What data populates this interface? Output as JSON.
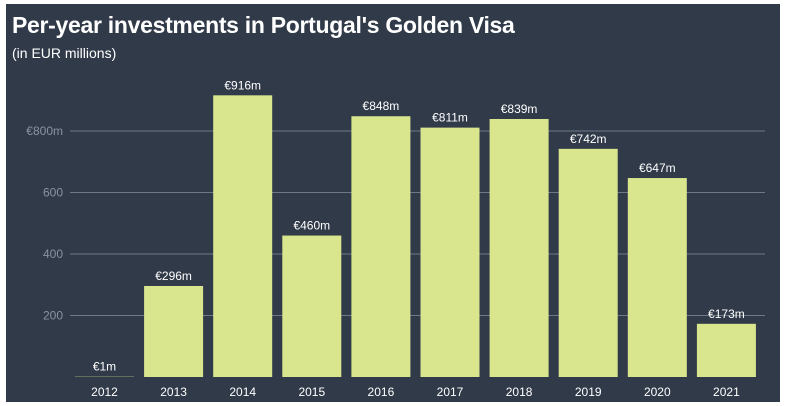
{
  "header": {
    "title": "Per-year investments in Portugal's Golden Visa",
    "subtitle": "(in EUR millions)"
  },
  "colors": {
    "background": "#313a49",
    "bar": "#dae68e",
    "grid": "#6f7885"
  },
  "chart_data": {
    "type": "bar",
    "title": "Per-year investments in Portugal's Golden Visa",
    "subtitle": "(in EUR millions)",
    "xlabel": "",
    "ylabel": "",
    "categories": [
      "2012",
      "2013",
      "2014",
      "2015",
      "2016",
      "2017",
      "2018",
      "2019",
      "2020",
      "2021"
    ],
    "values": [
      1,
      296,
      916,
      460,
      848,
      811,
      839,
      742,
      647,
      173
    ],
    "data_labels": [
      "€1m",
      "€296m",
      "€916m",
      "€460m",
      "€848m",
      "€811m",
      "€839m",
      "€742m",
      "€647m",
      "€173m"
    ],
    "yticks": [
      200,
      400,
      600,
      800
    ],
    "ytick_labels": [
      "200",
      "400",
      "600",
      "€800m"
    ],
    "ylim": [
      0,
      1000
    ],
    "grid": true,
    "legend": "none"
  }
}
